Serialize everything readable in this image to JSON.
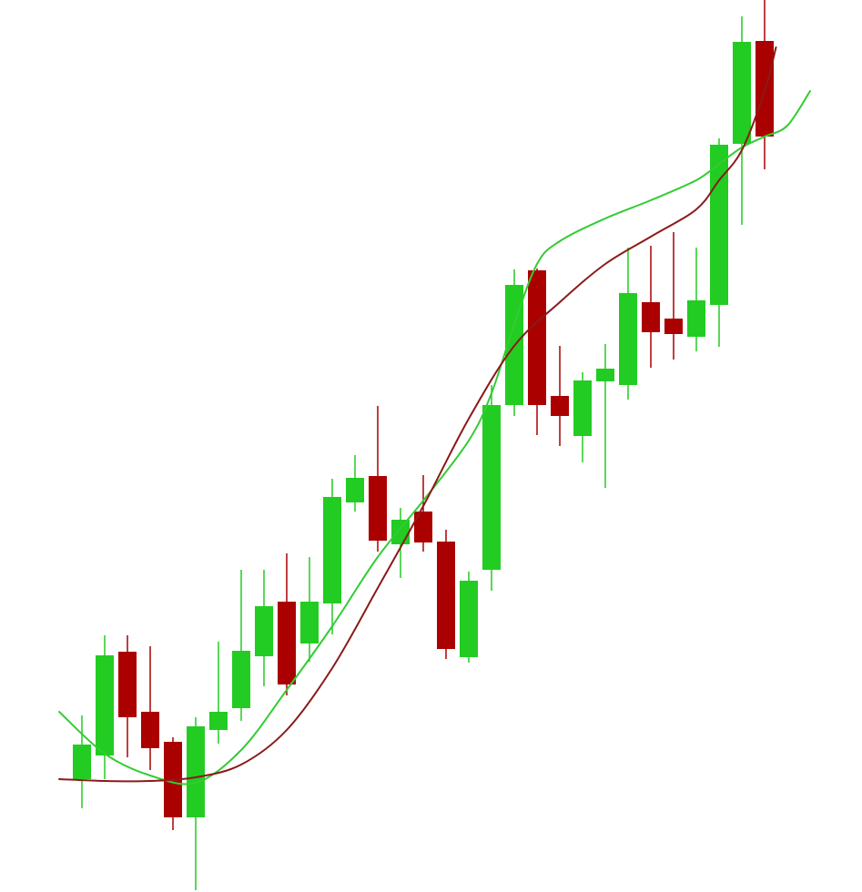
{
  "colors": {
    "background": "#ffffff",
    "up": "#22cc22",
    "down": "#aa0000",
    "ma_fast": "#33cc33",
    "ma_slow": "#8b1a1a"
  },
  "chart_data": {
    "type": "candlestick",
    "title": "",
    "xlabel": "",
    "ylabel": "",
    "grid": false,
    "legend": "none",
    "ylim": [
      0,
      980
    ],
    "candles": [
      {
        "x": 1,
        "open": 124,
        "close": 162,
        "high": 194,
        "low": 92
      },
      {
        "x": 2,
        "open": 150,
        "close": 260,
        "high": 282,
        "low": 124
      },
      {
        "x": 3,
        "open": 264,
        "close": 192,
        "high": 282,
        "low": 148
      },
      {
        "x": 4,
        "open": 198,
        "close": 158,
        "high": 270,
        "low": 134
      },
      {
        "x": 5,
        "open": 165,
        "close": 82,
        "high": 170,
        "low": 68
      },
      {
        "x": 6,
        "open": 82,
        "close": 182,
        "high": 192,
        "low": 2
      },
      {
        "x": 7,
        "open": 178,
        "close": 198,
        "high": 275,
        "low": 163
      },
      {
        "x": 8,
        "open": 202,
        "close": 265,
        "high": 354,
        "low": 188
      },
      {
        "x": 9,
        "open": 259,
        "close": 314,
        "high": 354,
        "low": 226
      },
      {
        "x": 10,
        "open": 319,
        "close": 228,
        "high": 372,
        "low": 216
      },
      {
        "x": 11,
        "open": 273,
        "close": 319,
        "high": 368,
        "low": 253
      },
      {
        "x": 12,
        "open": 317,
        "close": 434,
        "high": 454,
        "low": 283
      },
      {
        "x": 13,
        "open": 428,
        "close": 455,
        "high": 480,
        "low": 418
      },
      {
        "x": 14,
        "open": 457,
        "close": 386,
        "high": 534,
        "low": 374
      },
      {
        "x": 15,
        "open": 382,
        "close": 409,
        "high": 422,
        "low": 345
      },
      {
        "x": 16,
        "open": 418,
        "close": 384,
        "high": 458,
        "low": 374
      },
      {
        "x": 17,
        "open": 385,
        "close": 267,
        "high": 398,
        "low": 256
      },
      {
        "x": 18,
        "open": 258,
        "close": 342,
        "high": 352,
        "low": 252
      },
      {
        "x": 19,
        "open": 354,
        "close": 535,
        "high": 557,
        "low": 331
      },
      {
        "x": 20,
        "open": 535,
        "close": 667,
        "high": 684,
        "low": 523
      },
      {
        "x": 21,
        "open": 683,
        "close": 535,
        "high": 685,
        "low": 502
      },
      {
        "x": 22,
        "open": 545,
        "close": 523,
        "high": 600,
        "low": 490
      },
      {
        "x": 23,
        "open": 501,
        "close": 562,
        "high": 571,
        "low": 472
      },
      {
        "x": 24,
        "open": 561,
        "close": 575,
        "high": 602,
        "low": 444
      },
      {
        "x": 25,
        "open": 557,
        "close": 658,
        "high": 708,
        "low": 541
      },
      {
        "x": 26,
        "open": 648,
        "close": 615,
        "high": 710,
        "low": 576
      },
      {
        "x": 27,
        "open": 630,
        "close": 613,
        "high": 725,
        "low": 585
      },
      {
        "x": 28,
        "open": 610,
        "close": 650,
        "high": 708,
        "low": 594
      },
      {
        "x": 29,
        "open": 645,
        "close": 821,
        "high": 828,
        "low": 599
      },
      {
        "x": 30,
        "open": 822,
        "close": 934,
        "high": 962,
        "low": 733
      },
      {
        "x": 31,
        "open": 935,
        "close": 830,
        "high": 980,
        "low": 794
      }
    ],
    "series": [
      {
        "type": "line",
        "x": [
          0,
          2,
          4,
          6,
          8,
          10,
          12,
          14,
          16,
          18,
          19,
          20,
          21,
          22,
          24,
          26,
          28,
          29,
          30,
          31,
          32,
          33
        ],
        "values": [
          198,
          152,
          128,
          120,
          156,
          222,
          292,
          368,
          430,
          496,
          548,
          624,
          690,
          715,
          740,
          760,
          782,
          800,
          818,
          830,
          842,
          880
        ]
      },
      {
        "type": "line",
        "x": [
          0,
          2,
          4,
          6,
          8,
          10,
          12,
          14,
          16,
          18,
          20,
          22,
          24,
          26,
          28,
          29,
          30,
          31,
          31.5
        ],
        "values": [
          124,
          122,
          122,
          126,
          140,
          178,
          246,
          334,
          424,
          520,
          600,
          648,
          690,
          720,
          750,
          782,
          815,
          880,
          928
        ]
      }
    ]
  }
}
